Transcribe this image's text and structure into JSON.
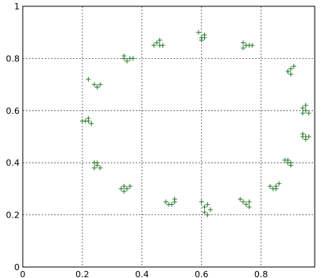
{
  "chart_data": {
    "type": "scatter",
    "title": "",
    "xlabel": "",
    "ylabel": "",
    "xlim": [
      0,
      0.98
    ],
    "ylim": [
      0,
      1
    ],
    "grid": true,
    "marker": "plus",
    "point_color": "#2e7d32",
    "x_ticks": [
      {
        "value": 0,
        "label": "0"
      },
      {
        "value": 0.2,
        "label": "0.2"
      },
      {
        "value": 0.4,
        "label": "0.4"
      },
      {
        "value": 0.6,
        "label": "0.6"
      },
      {
        "value": 0.8,
        "label": "0.8"
      }
    ],
    "y_ticks": [
      {
        "value": 0,
        "label": "0"
      },
      {
        "value": 0.2,
        "label": "0.2"
      },
      {
        "value": 0.4,
        "label": "0.4"
      },
      {
        "value": 0.6,
        "label": "0.6"
      },
      {
        "value": 0.8,
        "label": "0.8"
      },
      {
        "value": 1,
        "label": "1"
      }
    ],
    "series": [
      {
        "points": [
          [
            0.59,
            0.9
          ],
          [
            0.6,
            0.88
          ],
          [
            0.61,
            0.89
          ],
          [
            0.6,
            0.87
          ],
          [
            0.61,
            0.88
          ],
          [
            0.45,
            0.86
          ],
          [
            0.46,
            0.87
          ],
          [
            0.44,
            0.85
          ],
          [
            0.47,
            0.85
          ],
          [
            0.46,
            0.85
          ],
          [
            0.74,
            0.86
          ],
          [
            0.75,
            0.85
          ],
          [
            0.76,
            0.85
          ],
          [
            0.74,
            0.84
          ],
          [
            0.77,
            0.85
          ],
          [
            0.34,
            0.81
          ],
          [
            0.35,
            0.79
          ],
          [
            0.36,
            0.8
          ],
          [
            0.37,
            0.8
          ],
          [
            0.34,
            0.8
          ],
          [
            0.89,
            0.75
          ],
          [
            0.9,
            0.76
          ],
          [
            0.91,
            0.77
          ],
          [
            0.9,
            0.74
          ],
          [
            0.89,
            0.75
          ],
          [
            0.22,
            0.72
          ],
          [
            0.24,
            0.7
          ],
          [
            0.25,
            0.69
          ],
          [
            0.26,
            0.7
          ],
          [
            0.25,
            0.69
          ],
          [
            0.94,
            0.61
          ],
          [
            0.95,
            0.6
          ],
          [
            0.96,
            0.59
          ],
          [
            0.95,
            0.62
          ],
          [
            0.94,
            0.59
          ],
          [
            0.2,
            0.56
          ],
          [
            0.22,
            0.57
          ],
          [
            0.23,
            0.55
          ],
          [
            0.22,
            0.56
          ],
          [
            0.21,
            0.56
          ],
          [
            0.94,
            0.51
          ],
          [
            0.95,
            0.5
          ],
          [
            0.96,
            0.5
          ],
          [
            0.95,
            0.49
          ],
          [
            0.94,
            0.5
          ],
          [
            0.24,
            0.4
          ],
          [
            0.25,
            0.39
          ],
          [
            0.24,
            0.38
          ],
          [
            0.26,
            0.38
          ],
          [
            0.25,
            0.4
          ],
          [
            0.88,
            0.41
          ],
          [
            0.89,
            0.4
          ],
          [
            0.9,
            0.4
          ],
          [
            0.9,
            0.39
          ],
          [
            0.89,
            0.41
          ],
          [
            0.33,
            0.3
          ],
          [
            0.34,
            0.31
          ],
          [
            0.35,
            0.3
          ],
          [
            0.34,
            0.29
          ],
          [
            0.36,
            0.31
          ],
          [
            0.83,
            0.31
          ],
          [
            0.85,
            0.3
          ],
          [
            0.86,
            0.32
          ],
          [
            0.84,
            0.3
          ],
          [
            0.85,
            0.31
          ],
          [
            0.48,
            0.25
          ],
          [
            0.5,
            0.24
          ],
          [
            0.51,
            0.25
          ],
          [
            0.49,
            0.24
          ],
          [
            0.51,
            0.26
          ],
          [
            0.73,
            0.26
          ],
          [
            0.75,
            0.24
          ],
          [
            0.76,
            0.25
          ],
          [
            0.74,
            0.25
          ],
          [
            0.76,
            0.23
          ],
          [
            0.6,
            0.25
          ],
          [
            0.61,
            0.23
          ],
          [
            0.62,
            0.24
          ],
          [
            0.63,
            0.22
          ],
          [
            0.61,
            0.21
          ],
          [
            0.62,
            0.2
          ]
        ]
      }
    ]
  }
}
